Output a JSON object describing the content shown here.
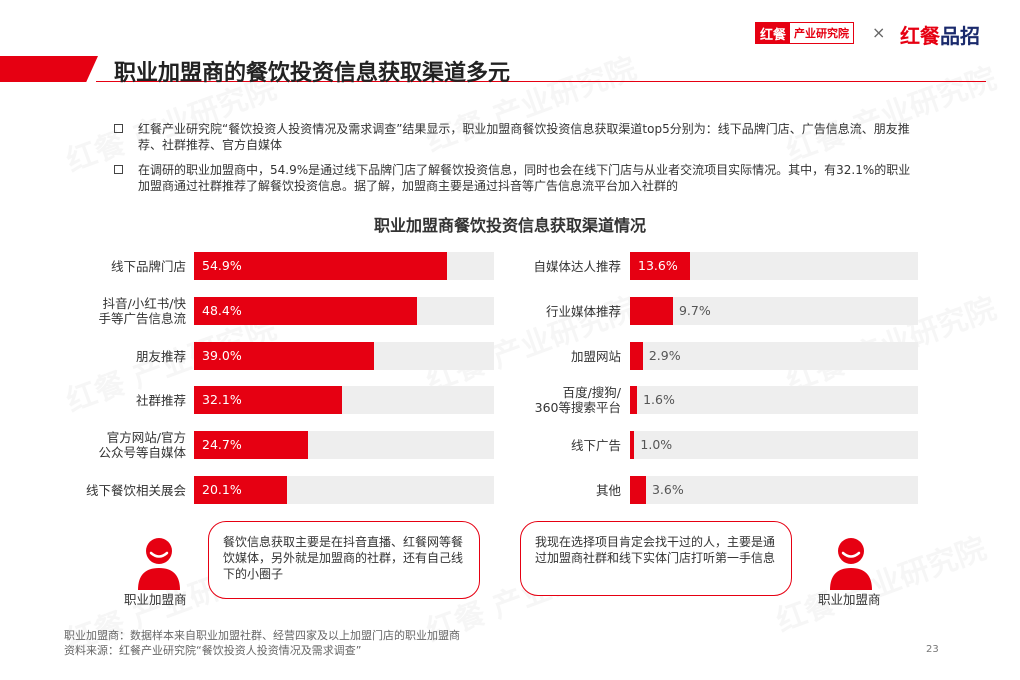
{
  "header": {
    "title": "职业加盟商的餐饮投资信息获取渠道多元",
    "logo_left_a": "红餐",
    "logo_left_b": "产业研究院",
    "logo_sep": "×",
    "logo_right_a": "红餐",
    "logo_right_b": "品招"
  },
  "watermark": "红餐 产业研究院",
  "bullets": [
    "红餐产业研究院“餐饮投资人投资情况及需求调查”结果显示，职业加盟商餐饮投资信息获取渠道top5分别为：线下品牌门店、广告信息流、朋友推荐、社群推荐、官方自媒体",
    "在调研的职业加盟商中，54.9%是通过线下品牌门店了解餐饮投资信息，同时也会在线下门店与从业者交流项目实际情况。其中，有32.1%的职业加盟商通过社群推荐了解餐饮投资信息。据了解，加盟商主要是通过抖音等广告信息流平台加入社群的"
  ],
  "chart_data": {
    "type": "bar",
    "title": "职业加盟商餐饮投资信息获取渠道情况",
    "xlim": [
      0,
      65
    ],
    "series": [
      {
        "categories": [
          "线下品牌门店",
          "抖音/小红书/快手等广告信息流",
          "朋友推荐",
          "社群推荐",
          "官方网站/官方公众号等自媒体",
          "线下餐饮相关展会"
        ],
        "display_labels": [
          [
            "线下品牌门店"
          ],
          [
            "抖音/小红书/快",
            "手等广告信息流"
          ],
          [
            "朋友推荐"
          ],
          [
            "社群推荐"
          ],
          [
            "官方网站/官方",
            "公众号等自媒体"
          ],
          [
            "线下餐饮相关展会"
          ]
        ],
        "values": [
          54.9,
          48.4,
          39.0,
          32.1,
          24.7,
          20.1
        ],
        "value_labels": [
          "54.9%",
          "48.4%",
          "39.0%",
          "32.1%",
          "24.7%",
          "20.1%"
        ]
      },
      {
        "categories": [
          "自媒体达人推荐",
          "行业媒体推荐",
          "加盟网站",
          "百度/搜狗/360等搜索平台",
          "线下广告",
          "其他"
        ],
        "display_labels": [
          [
            "自媒体达人推荐"
          ],
          [
            "行业媒体推荐"
          ],
          [
            "加盟网站"
          ],
          [
            "百度/搜狗/",
            "360等搜索平台"
          ],
          [
            "线下广告"
          ],
          [
            "其他"
          ]
        ],
        "values": [
          13.6,
          9.7,
          2.9,
          1.6,
          1.0,
          3.6
        ],
        "value_labels": [
          "13.6%",
          "9.7%",
          "2.9%",
          "1.6%",
          "1.0%",
          "3.6%"
        ]
      }
    ],
    "colors": {
      "bar": "#e60012",
      "track": "#eeeeee"
    }
  },
  "quotes": [
    {
      "text": "餐饮信息获取主要是在抖音直播、红餐网等餐饮媒体，另外就是加盟商的社群，还有自己线下的小圈子",
      "speaker": "职业加盟商",
      "icon": "person-icon"
    },
    {
      "text": "我现在选择项目肯定会找干过的人，主要是通过加盟商社群和线下实体门店打听第一手信息",
      "speaker": "职业加盟商",
      "icon": "person-icon"
    }
  ],
  "footnotes": [
    "职业加盟商：数据样本来自职业加盟社群、经营四家及以上加盟门店的职业加盟商",
    "资料来源：红餐产业研究院“餐饮投资人投资情况及需求调查”"
  ],
  "page_number": "23",
  "colors": {
    "accent": "#e60012",
    "brand_blue": "#1a2a6c"
  }
}
